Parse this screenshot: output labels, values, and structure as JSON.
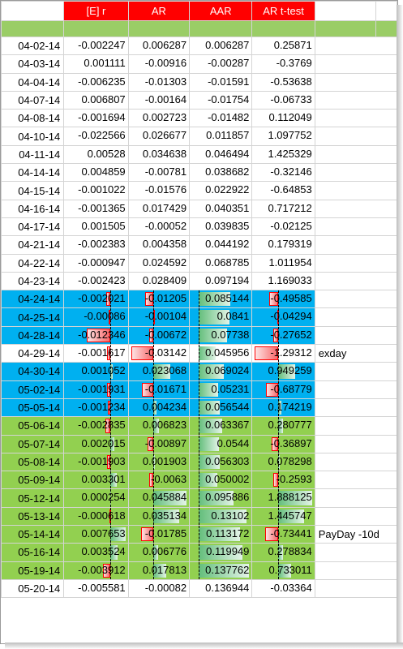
{
  "headers": [
    "[E] r",
    "AR",
    "AAR",
    "AR t-test"
  ],
  "rows": [
    {
      "date": "04-02-14",
      "er": "-0.002247",
      "ar": "0.006287",
      "aar": "0.006287",
      "tt": "0.25871",
      "note": "",
      "style": ""
    },
    {
      "date": "04-03-14",
      "er": "0.001111",
      "ar": "-0.00916",
      "aar": "-0.00287",
      "tt": "-0.3769",
      "note": "",
      "style": ""
    },
    {
      "date": "04-04-14",
      "er": "-0.006235",
      "ar": "-0.01303",
      "aar": "-0.01591",
      "tt": "-0.53638",
      "note": "",
      "style": ""
    },
    {
      "date": "04-07-14",
      "er": "0.006807",
      "ar": "-0.00164",
      "aar": "-0.01754",
      "tt": "-0.06733",
      "note": "",
      "style": ""
    },
    {
      "date": "04-08-14",
      "er": "-0.001694",
      "ar": "0.002723",
      "aar": "-0.01482",
      "tt": "0.112049",
      "note": "",
      "style": ""
    },
    {
      "date": "04-10-14",
      "er": "-0.022566",
      "ar": "0.026677",
      "aar": "0.011857",
      "tt": "1.097752",
      "note": "",
      "style": ""
    },
    {
      "date": "04-11-14",
      "er": "0.00528",
      "ar": "0.034638",
      "aar": "0.046494",
      "tt": "1.425329",
      "note": "",
      "style": ""
    },
    {
      "date": "04-14-14",
      "er": "0.004859",
      "ar": "-0.00781",
      "aar": "0.038682",
      "tt": "-0.32146",
      "note": "",
      "style": ""
    },
    {
      "date": "04-15-14",
      "er": "-0.001022",
      "ar": "-0.01576",
      "aar": "0.022922",
      "tt": "-0.64853",
      "note": "",
      "style": ""
    },
    {
      "date": "04-16-14",
      "er": "-0.001365",
      "ar": "0.017429",
      "aar": "0.040351",
      "tt": "0.717212",
      "note": "",
      "style": ""
    },
    {
      "date": "04-17-14",
      "er": "0.001505",
      "ar": "-0.00052",
      "aar": "0.039835",
      "tt": "-0.02125",
      "note": "",
      "style": ""
    },
    {
      "date": "04-21-14",
      "er": "-0.002383",
      "ar": "0.004358",
      "aar": "0.044192",
      "tt": "0.179319",
      "note": "",
      "style": ""
    },
    {
      "date": "04-22-14",
      "er": "-0.000947",
      "ar": "0.024592",
      "aar": "0.068785",
      "tt": "1.011954",
      "note": "",
      "style": ""
    },
    {
      "date": "04-23-14",
      "er": "-0.002423",
      "ar": "0.028409",
      "aar": "0.097194",
      "tt": "1.169033",
      "note": "",
      "style": ""
    },
    {
      "date": "04-24-14",
      "er": "-0.002021",
      "ar": "-0.01205",
      "aar": "0.085144",
      "tt": "-0.49585",
      "note": "",
      "style": "blue"
    },
    {
      "date": "04-25-14",
      "er": "-0.00086",
      "ar": "-0.00104",
      "aar": "0.0841",
      "tt": "-0.04294",
      "note": "",
      "style": "blue"
    },
    {
      "date": "04-28-14",
      "er": "-0.012346",
      "ar": "-0.00672",
      "aar": "0.07738",
      "tt": "-0.27652",
      "note": "",
      "style": "blue"
    },
    {
      "date": "04-29-14",
      "er": "-0.001617",
      "ar": "-0.03142",
      "aar": "0.045956",
      "tt": "-1.29312",
      "note": "exday",
      "style": "white"
    },
    {
      "date": "04-30-14",
      "er": "0.001052",
      "ar": "0.023068",
      "aar": "0.069024",
      "tt": "0.949259",
      "note": "",
      "style": "blue"
    },
    {
      "date": "05-02-14",
      "er": "-0.001931",
      "ar": "-0.01671",
      "aar": "0.05231",
      "tt": "-0.68779",
      "note": "",
      "style": "blue"
    },
    {
      "date": "05-05-14",
      "er": "-0.001234",
      "ar": "0.004234",
      "aar": "0.056544",
      "tt": "0.174219",
      "note": "",
      "style": "blue"
    },
    {
      "date": "05-06-14",
      "er": "-0.002835",
      "ar": "0.006823",
      "aar": "0.063367",
      "tt": "0.280777",
      "note": "",
      "style": "green"
    },
    {
      "date": "05-07-14",
      "er": "0.002015",
      "ar": "-0.00897",
      "aar": "0.0544",
      "tt": "-0.36897",
      "note": "",
      "style": "green"
    },
    {
      "date": "05-08-14",
      "er": "-0.001903",
      "ar": "0.001903",
      "aar": "0.056303",
      "tt": "0.078298",
      "note": "",
      "style": "green"
    },
    {
      "date": "05-09-14",
      "er": "0.003301",
      "ar": "-0.0063",
      "aar": "0.050002",
      "tt": "-0.2593",
      "note": "",
      "style": "green"
    },
    {
      "date": "05-12-14",
      "er": "0.000254",
      "ar": "0.045884",
      "aar": "0.095886",
      "tt": "1.888125",
      "note": "",
      "style": "green"
    },
    {
      "date": "05-13-14",
      "er": "-0.000618",
      "ar": "0.035134",
      "aar": "0.13102",
      "tt": "1.445747",
      "note": "",
      "style": "green"
    },
    {
      "date": "05-14-14",
      "er": "0.007653",
      "ar": "-0.01785",
      "aar": "0.113172",
      "tt": "-0.73441",
      "note": "PayDay -10d",
      "style": "green"
    },
    {
      "date": "05-16-14",
      "er": "0.003524",
      "ar": "0.006776",
      "aar": "0.119949",
      "tt": "0.278834",
      "note": "",
      "style": "green"
    },
    {
      "date": "05-19-14",
      "er": "-0.003912",
      "ar": "0.017813",
      "aar": "0.137762",
      "tt": "0.733011",
      "note": "",
      "style": "green"
    },
    {
      "date": "05-20-14",
      "er": "-0.005581",
      "ar": "-0.00082",
      "aar": "0.136944",
      "tt": "-0.03364",
      "note": "",
      "style": ""
    }
  ],
  "colors": {
    "header_bg": "#ff0000",
    "green_band": "#9acd66",
    "blue_band": "#00b0f0",
    "green_rows": "#92d050",
    "bar_pos": "#63be7b",
    "bar_neg": "#f8696b"
  }
}
